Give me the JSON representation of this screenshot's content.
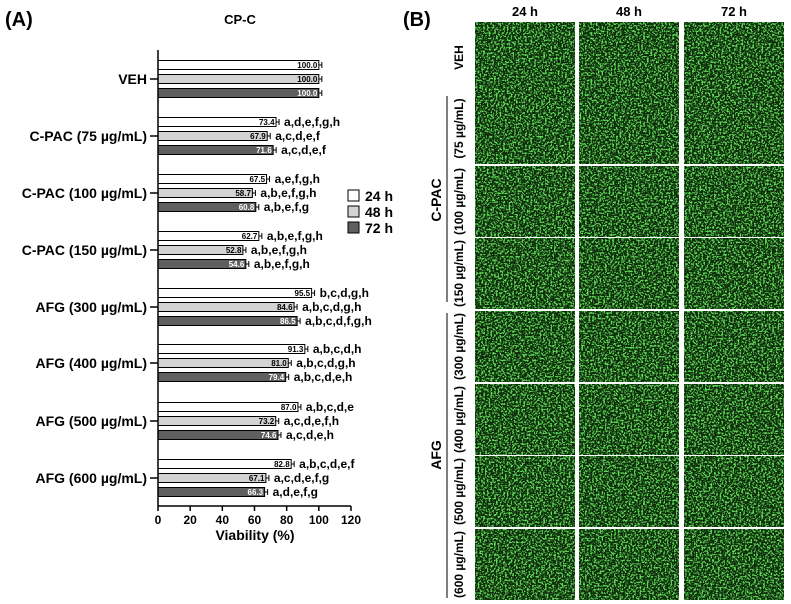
{
  "figure": {
    "panel_a_label": "(A)",
    "panel_b_label": "(B)",
    "panel_b": {
      "col_headers": [
        "24 h",
        "48 h",
        "72 h"
      ],
      "row_labels": [
        "VEH",
        "(75 µg/mL)",
        "(100 µg/mL)",
        "(150 µg/mL)",
        "(300 µg/mL)",
        "(400 µg/mL)",
        "(500 µg/mL)",
        "(600 µg/mL)"
      ],
      "group_labels": [
        "C-PAC",
        "AFG"
      ],
      "image_color": "#1f8c1a"
    }
  },
  "chart_data": {
    "type": "bar",
    "orientation": "horizontal",
    "title": "CP-C",
    "xlabel": "Viability (%)",
    "ylabel": "",
    "xlim": [
      0,
      120
    ],
    "xticks": [
      0,
      20,
      40,
      60,
      80,
      100,
      120
    ],
    "categories": [
      "VEH",
      "C-PAC (75 µg/mL)",
      "C-PAC (100 µg/mL)",
      "C-PAC (150 µg/mL)",
      "AFG (300 µg/mL)",
      "AFG (400 µg/mL)",
      "AFG (500 µg/mL)",
      "AFG (600 µg/mL)"
    ],
    "series": [
      {
        "name": "24 h",
        "color": "#ffffff",
        "values": [
          100.0,
          73.4,
          67.5,
          62.7,
          95.5,
          91.3,
          87.0,
          82.8
        ],
        "value_labels": [
          "100.0",
          "73.4",
          "67.5",
          "62.7",
          "95.5",
          "91.3",
          "87.0",
          "82.8"
        ],
        "significance": [
          "",
          "a,d,e,f,g,h",
          "a,e,f,g,h",
          "a,b,e,f,g,h",
          "b,c,d,g,h",
          "a,b,c,d,h",
          "a,b,c,d,e",
          "a,b,c,d,e,f"
        ]
      },
      {
        "name": "48 h",
        "color": "#d3d3d3",
        "values": [
          100.0,
          67.9,
          58.7,
          52.8,
          84.6,
          81.0,
          73.2,
          67.1
        ],
        "value_labels": [
          "100.0",
          "67.9",
          "58.7",
          "52.8",
          "84.6",
          "81.0",
          "73.2",
          "67.1"
        ],
        "significance": [
          "",
          "a,c,d,e,f",
          "a,b,e,f,g,h",
          "a,b,e,f,g,h",
          "a,b,c,d,g,h",
          "a,b,c,d,g,h",
          "a,c,d,e,f,h",
          "a,c,d,e,f,g"
        ]
      },
      {
        "name": "72 h",
        "color": "#5f5f5f",
        "values": [
          100.0,
          71.6,
          60.8,
          54.6,
          86.5,
          79.4,
          74.6,
          66.3
        ],
        "value_labels": [
          "100.0",
          "71.6",
          "60.8",
          "54.6",
          "86.5",
          "79.4",
          "74.6",
          "66.3"
        ],
        "significance": [
          "",
          "a,c,d,e,f",
          "a,b,e,f,g",
          "a,b,e,f,g,h",
          "a,b,c,d,f,g,h",
          "a,b,c,d,e,h",
          "a,c,d,e,h",
          "a,d,e,f,g"
        ]
      }
    ],
    "legend": {
      "position": "right",
      "entries": [
        "24 h",
        "48 h",
        "72 h"
      ]
    },
    "grid": false
  }
}
